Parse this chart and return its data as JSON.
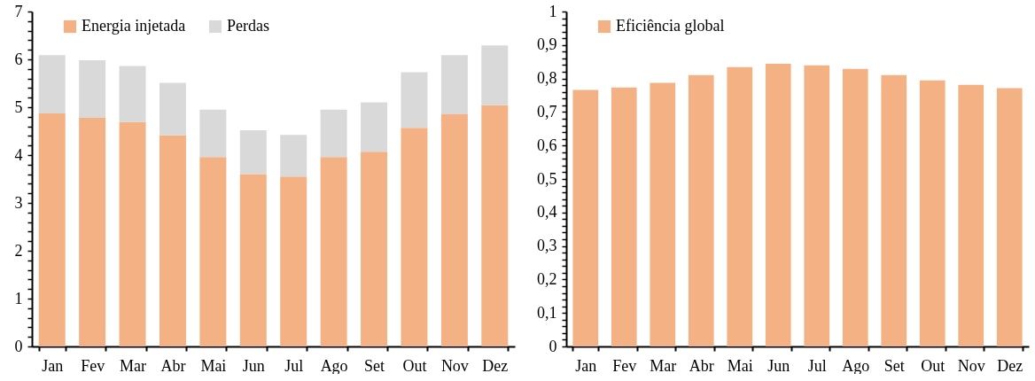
{
  "chart_data": [
    {
      "type": "bar",
      "stacked": true,
      "categories": [
        "Jan",
        "Fev",
        "Mar",
        "Abr",
        "Mai",
        "Jun",
        "Jul",
        "Ago",
        "Set",
        "Out",
        "Nov",
        "Dez"
      ],
      "series": [
        {
          "name": "Energia injetada",
          "color": "#f4b183",
          "values": [
            4.87,
            4.78,
            4.69,
            4.41,
            3.96,
            3.6,
            3.55,
            3.96,
            4.07,
            4.57,
            4.85,
            5.04
          ]
        },
        {
          "name": "Perdas",
          "color": "#d9d9d9",
          "values": [
            1.22,
            1.2,
            1.17,
            1.1,
            0.99,
            0.92,
            0.87,
            0.99,
            1.03,
            1.16,
            1.24,
            1.25
          ]
        }
      ],
      "ylim": [
        0,
        7
      ],
      "yticks": [
        0,
        {
          "value": 0.2,
          "label": null
        },
        {
          "value": 0.4,
          "label": null
        },
        {
          "value": 0.6,
          "label": null
        },
        {
          "value": 0.8,
          "label": null
        },
        1,
        {
          "value": 1.2,
          "label": null
        },
        {
          "value": 1.4,
          "label": null
        },
        {
          "value": 1.6,
          "label": null
        },
        {
          "value": 1.8,
          "label": null
        },
        2,
        {
          "value": 2.2,
          "label": null
        },
        {
          "value": 2.4,
          "label": null
        },
        {
          "value": 2.6,
          "label": null
        },
        {
          "value": 2.8,
          "label": null
        },
        3,
        {
          "value": 3.2,
          "label": null
        },
        {
          "value": 3.4,
          "label": null
        },
        {
          "value": 3.6,
          "label": null
        },
        {
          "value": 3.8,
          "label": null
        },
        4,
        {
          "value": 4.2,
          "label": null
        },
        {
          "value": 4.4,
          "label": null
        },
        {
          "value": 4.6,
          "label": null
        },
        {
          "value": 4.8,
          "label": null
        },
        5,
        {
          "value": 5.2,
          "label": null
        },
        {
          "value": 5.4,
          "label": null
        },
        {
          "value": 5.6,
          "label": null
        },
        {
          "value": 5.8,
          "label": null
        },
        6,
        {
          "value": 6.2,
          "label": null
        },
        {
          "value": 6.4,
          "label": null
        },
        {
          "value": 6.6,
          "label": null
        },
        {
          "value": 6.8,
          "label": null
        },
        7
      ],
      "legend": "top left",
      "grid": false
    },
    {
      "type": "bar",
      "categories": [
        "Jan",
        "Fev",
        "Mar",
        "Abr",
        "Mai",
        "Jun",
        "Jul",
        "Ago",
        "Set",
        "Out",
        "Nov",
        "Dez"
      ],
      "series": [
        {
          "name": "Eficiência global",
          "color": "#f4b183",
          "values": [
            0.766,
            0.773,
            0.787,
            0.81,
            0.834,
            0.844,
            0.839,
            0.829,
            0.81,
            0.794,
            0.781,
            0.771
          ]
        }
      ],
      "ylim": [
        0,
        1
      ],
      "yticks": [
        0,
        {
          "value": 0.02,
          "label": null
        },
        {
          "value": 0.04,
          "label": null
        },
        {
          "value": 0.06,
          "label": null
        },
        {
          "value": 0.08,
          "label": null
        },
        {
          "value": 0.1,
          "label": "0,1"
        },
        {
          "value": 0.12,
          "label": null
        },
        {
          "value": 0.14,
          "label": null
        },
        {
          "value": 0.16,
          "label": null
        },
        {
          "value": 0.18,
          "label": null
        },
        {
          "value": 0.2,
          "label": "0,2"
        },
        {
          "value": 0.22,
          "label": null
        },
        {
          "value": 0.24,
          "label": null
        },
        {
          "value": 0.26,
          "label": null
        },
        {
          "value": 0.28,
          "label": null
        },
        {
          "value": 0.3,
          "label": "0,3"
        },
        {
          "value": 0.32,
          "label": null
        },
        {
          "value": 0.34,
          "label": null
        },
        {
          "value": 0.36,
          "label": null
        },
        {
          "value": 0.38,
          "label": null
        },
        {
          "value": 0.4,
          "label": "0,4"
        },
        {
          "value": 0.42,
          "label": null
        },
        {
          "value": 0.44,
          "label": null
        },
        {
          "value": 0.46,
          "label": null
        },
        {
          "value": 0.48,
          "label": null
        },
        {
          "value": 0.5,
          "label": "0,5"
        },
        {
          "value": 0.52,
          "label": null
        },
        {
          "value": 0.54,
          "label": null
        },
        {
          "value": 0.56,
          "label": null
        },
        {
          "value": 0.58,
          "label": null
        },
        {
          "value": 0.6,
          "label": "0,6"
        },
        {
          "value": 0.62,
          "label": null
        },
        {
          "value": 0.64,
          "label": null
        },
        {
          "value": 0.66,
          "label": null
        },
        {
          "value": 0.68,
          "label": null
        },
        {
          "value": 0.7,
          "label": "0,7"
        },
        {
          "value": 0.72,
          "label": null
        },
        {
          "value": 0.74,
          "label": null
        },
        {
          "value": 0.76,
          "label": null
        },
        {
          "value": 0.78,
          "label": null
        },
        {
          "value": 0.8,
          "label": "0,8"
        },
        {
          "value": 0.82,
          "label": null
        },
        {
          "value": 0.84,
          "label": null
        },
        {
          "value": 0.86,
          "label": null
        },
        {
          "value": 0.88,
          "label": null
        },
        {
          "value": 0.9,
          "label": "0,9"
        },
        {
          "value": 0.92,
          "label": null
        },
        {
          "value": 0.94,
          "label": null
        },
        {
          "value": 0.96,
          "label": null
        },
        {
          "value": 0.98,
          "label": null
        },
        1
      ],
      "legend": "top left",
      "grid": false
    }
  ]
}
